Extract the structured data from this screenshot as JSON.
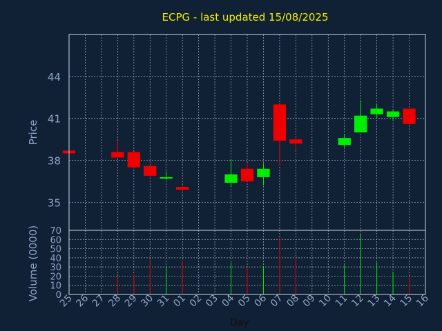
{
  "chart_data": [
    {
      "type": "candlestick",
      "title": "ECPG - last updated 15/08/2025",
      "ylabel": "Price",
      "ylim": [
        33,
        47
      ],
      "yticks": [
        35,
        38,
        41,
        44
      ],
      "grid": true,
      "colors": {
        "up": "#00ee00",
        "down": "#ee0000",
        "background": "#102035",
        "grid": "#d0d8e0",
        "axis_text": "#8fa6c8",
        "title": "#f2f000"
      },
      "candles": [
        {
          "day": "25",
          "open": 38.7,
          "high": 38.7,
          "low": 38.5,
          "close": 38.5
        },
        {
          "day": "28",
          "open": 38.6,
          "high": 39.4,
          "low": 38.2,
          "close": 38.2
        },
        {
          "day": "29",
          "open": 38.6,
          "high": 38.6,
          "low": 37.4,
          "close": 37.5
        },
        {
          "day": "30",
          "open": 37.6,
          "high": 37.6,
          "low": 36.7,
          "close": 36.9
        },
        {
          "day": "31",
          "open": 36.7,
          "high": 37.2,
          "low": 36.6,
          "close": 36.8
        },
        {
          "day": "01",
          "open": 36.1,
          "high": 36.2,
          "low": 35.7,
          "close": 35.9
        },
        {
          "day": "04",
          "open": 36.4,
          "high": 38.1,
          "low": 36.1,
          "close": 37.0
        },
        {
          "day": "05",
          "open": 37.4,
          "high": 37.8,
          "low": 36.5,
          "close": 36.5
        },
        {
          "day": "06",
          "open": 36.8,
          "high": 37.8,
          "low": 36.2,
          "close": 37.4
        },
        {
          "day": "07",
          "open": 42.0,
          "high": 42.0,
          "low": 37.6,
          "close": 39.4
        },
        {
          "day": "08",
          "open": 39.5,
          "high": 39.6,
          "low": 38.7,
          "close": 39.2
        },
        {
          "day": "11",
          "open": 39.1,
          "high": 39.9,
          "low": 38.9,
          "close": 39.6
        },
        {
          "day": "12",
          "open": 40.0,
          "high": 42.3,
          "low": 40.0,
          "close": 41.2
        },
        {
          "day": "13",
          "open": 41.3,
          "high": 42.0,
          "low": 41.0,
          "close": 41.7
        },
        {
          "day": "14",
          "open": 41.1,
          "high": 41.6,
          "low": 40.9,
          "close": 41.5
        },
        {
          "day": "15",
          "open": 41.7,
          "high": 41.7,
          "low": 40.5,
          "close": 40.6
        }
      ]
    },
    {
      "type": "bar",
      "xlabel": "Day",
      "ylabel": "Volume (0000)",
      "ylim": [
        0,
        70
      ],
      "yticks": [
        0,
        10,
        20,
        30,
        40,
        50,
        60,
        70
      ],
      "grid": true,
      "categories": [
        "25",
        "26",
        "27",
        "28",
        "29",
        "30",
        "31",
        "01",
        "02",
        "03",
        "04",
        "05",
        "06",
        "07",
        "08",
        "09",
        "10",
        "11",
        "12",
        "13",
        "14",
        "15",
        "16"
      ],
      "volumes": [
        {
          "day": "28",
          "value": 20,
          "color": "#ee0000"
        },
        {
          "day": "29",
          "value": 22,
          "color": "#ee0000"
        },
        {
          "day": "30",
          "value": 38,
          "color": "#ee0000"
        },
        {
          "day": "31",
          "value": 31,
          "color": "#00ee00"
        },
        {
          "day": "01",
          "value": 37,
          "color": "#ee0000"
        },
        {
          "day": "04",
          "value": 35,
          "color": "#00ee00"
        },
        {
          "day": "05",
          "value": 30,
          "color": "#ee0000"
        },
        {
          "day": "06",
          "value": 31,
          "color": "#00ee00"
        },
        {
          "day": "07",
          "value": 62,
          "color": "#ee0000"
        },
        {
          "day": "08",
          "value": 40,
          "color": "#ee0000"
        },
        {
          "day": "11",
          "value": 32,
          "color": "#00ee00"
        },
        {
          "day": "12",
          "value": 66,
          "color": "#00ee00"
        },
        {
          "day": "13",
          "value": 35,
          "color": "#00ee00"
        },
        {
          "day": "14",
          "value": 25,
          "color": "#00ee00"
        },
        {
          "day": "15",
          "value": 20,
          "color": "#ee0000"
        }
      ]
    }
  ]
}
